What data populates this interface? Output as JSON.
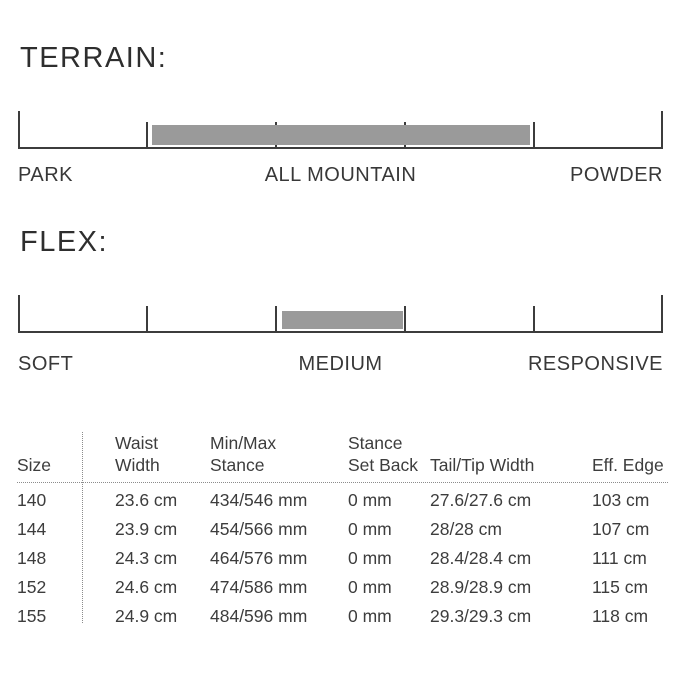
{
  "page": {
    "background": "#ffffff",
    "text_color": "#3c3c3c",
    "bar_color": "#9a9a9a",
    "line_color": "#3c3c3c",
    "dotted_color": "#8c8c8c"
  },
  "terrain": {
    "title": "TERRAIN:",
    "labels": {
      "left": "PARK",
      "center": "ALL MOUNTAIN",
      "right": "POWDER"
    },
    "bar_range_pct": [
      20.8,
      79.4
    ]
  },
  "flex": {
    "title": "FLEX:",
    "labels": {
      "left": "SOFT",
      "center": "MEDIUM",
      "right": "RESPONSIVE"
    },
    "bar_range_pct": [
      40.9,
      59.7
    ]
  },
  "table": {
    "headers": [
      {
        "lines": [
          "Size"
        ]
      },
      {
        "lines": [
          "Waist",
          "Width"
        ]
      },
      {
        "lines": [
          "Min/Max",
          "Stance"
        ]
      },
      {
        "lines": [
          "Stance",
          "Set Back"
        ]
      },
      {
        "lines": [
          "Tail/Tip Width"
        ]
      },
      {
        "lines": [
          "Eff. Edge"
        ]
      }
    ],
    "rows": [
      {
        "size": "140",
        "waist": "23.6 cm",
        "stance": "434/546 mm",
        "setback": "0 mm",
        "tailtip": "27.6/27.6 cm",
        "edge": "103 cm"
      },
      {
        "size": "144",
        "waist": "23.9 cm",
        "stance": "454/566 mm",
        "setback": "0 mm",
        "tailtip": "28/28 cm",
        "edge": "107 cm"
      },
      {
        "size": "148",
        "waist": "24.3 cm",
        "stance": "464/576 mm",
        "setback": "0 mm",
        "tailtip": "28.4/28.4 cm",
        "edge": "111 cm"
      },
      {
        "size": "152",
        "waist": "24.6 cm",
        "stance": "474/586 mm",
        "setback": "0 mm",
        "tailtip": "28.9/28.9 cm",
        "edge": "115 cm"
      },
      {
        "size": "155",
        "waist": "24.9 cm",
        "stance": "484/596 mm",
        "setback": "0 mm",
        "tailtip": "29.3/29.3 cm",
        "edge": "118 cm"
      }
    ]
  },
  "chart_data": [
    {
      "type": "bar",
      "title": "TERRAIN:",
      "categories": [
        "PARK",
        "ALL MOUNTAIN",
        "POWDER"
      ],
      "scale_ticks_pct": [
        0,
        20,
        40,
        60,
        80,
        100
      ],
      "bar_range_pct": [
        21,
        79
      ],
      "bar_color": "#9a9a9a",
      "reading": "gray band centered on ALL MOUNTAIN, spanning from near PARK side to near POWDER side"
    },
    {
      "type": "bar",
      "title": "FLEX:",
      "categories": [
        "SOFT",
        "MEDIUM",
        "RESPONSIVE"
      ],
      "scale_ticks_pct": [
        0,
        20,
        40,
        60,
        80,
        100
      ],
      "bar_range_pct": [
        41,
        60
      ],
      "bar_color": "#9a9a9a",
      "reading": "gray band centered on MEDIUM"
    },
    {
      "type": "table",
      "columns": [
        "Size",
        "Waist Width",
        "Min/Max Stance",
        "Stance Set Back",
        "Tail/Tip Width",
        "Eff. Edge"
      ],
      "rows": [
        [
          "140",
          "23.6 cm",
          "434/546 mm",
          "0 mm",
          "27.6/27.6 cm",
          "103 cm"
        ],
        [
          "144",
          "23.9 cm",
          "454/566 mm",
          "0 mm",
          "28/28 cm",
          "107 cm"
        ],
        [
          "148",
          "24.3 cm",
          "464/576 mm",
          "0 mm",
          "28.4/28.4 cm",
          "111 cm"
        ],
        [
          "152",
          "24.6 cm",
          "474/586 mm",
          "0 mm",
          "28.9/28.9 cm",
          "115 cm"
        ],
        [
          "155",
          "24.9 cm",
          "484/596 mm",
          "0 mm",
          "29.3/29.3 cm",
          "118 cm"
        ]
      ]
    }
  ]
}
